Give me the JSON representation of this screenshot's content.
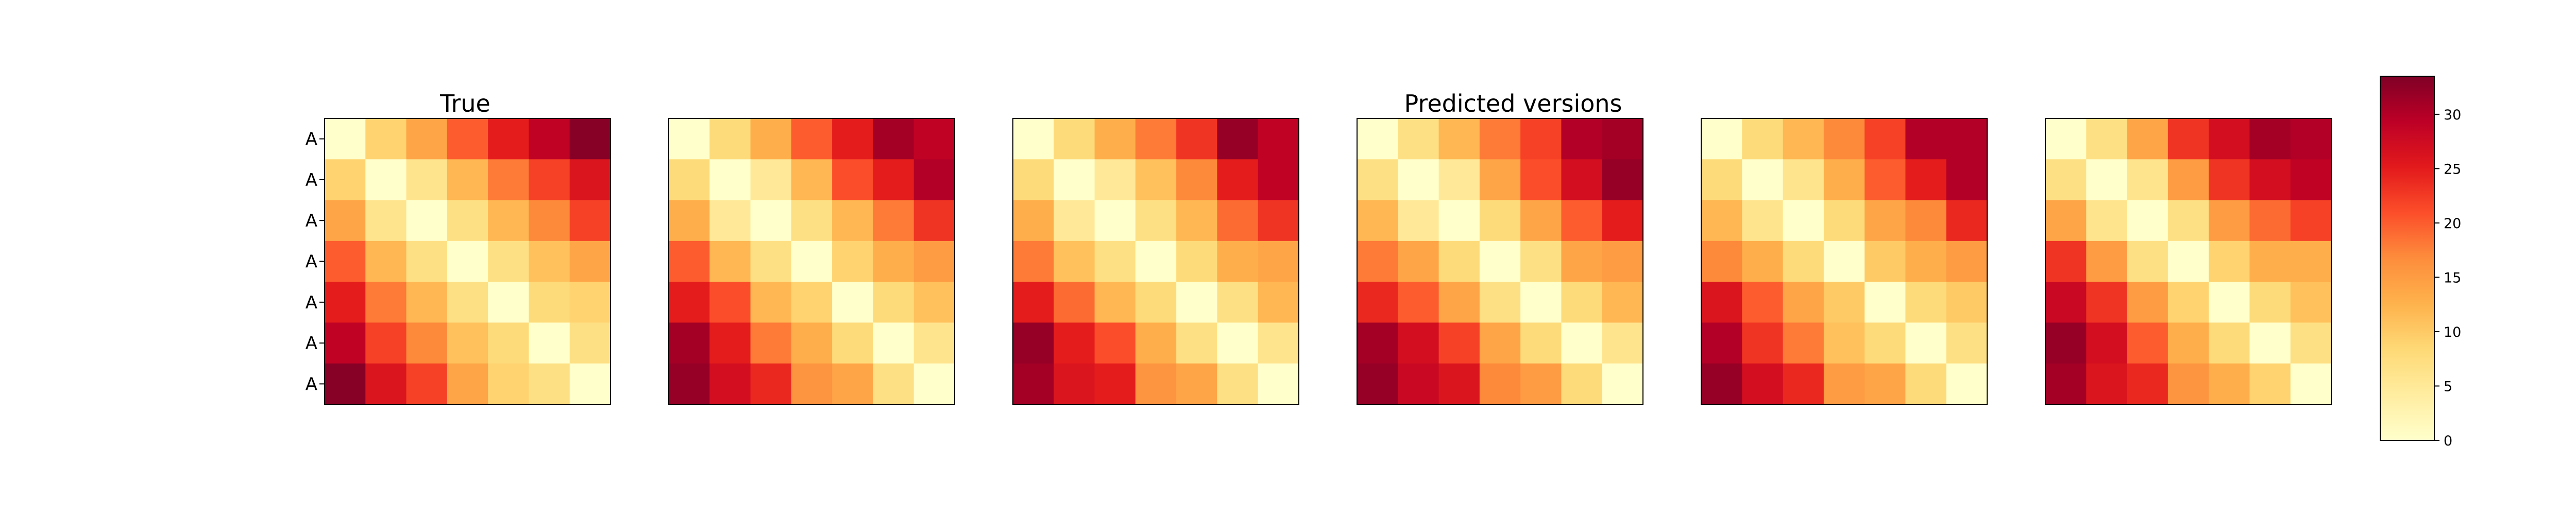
{
  "chart_data": {
    "type": "heatmap",
    "colormap": "YlOrRd",
    "vmin": 0,
    "vmax": 33.5,
    "titles": [
      "True",
      "Predicted versions"
    ],
    "row_labels": [
      "A",
      "A",
      "A",
      "A",
      "A",
      "A",
      "A"
    ],
    "colorbar": {
      "ticks": [
        0,
        5,
        10,
        15,
        20,
        25,
        30
      ]
    },
    "panels": [
      {
        "matrix": [
          [
            0,
            9,
            14,
            20,
            25,
            29,
            33
          ],
          [
            9,
            0,
            6,
            12,
            18,
            22,
            26
          ],
          [
            14,
            6,
            0,
            7,
            12,
            17,
            22
          ],
          [
            20,
            12,
            7,
            0,
            7,
            11,
            14
          ],
          [
            25,
            18,
            12,
            7,
            0,
            8,
            9
          ],
          [
            29,
            22,
            17,
            11,
            8,
            0,
            7
          ],
          [
            33,
            26,
            22,
            14,
            9,
            7,
            0
          ]
        ]
      },
      {
        "matrix": [
          [
            0,
            8,
            13,
            20,
            25,
            31,
            29
          ],
          [
            8,
            0,
            5,
            12,
            21,
            25,
            30
          ],
          [
            13,
            5,
            0,
            7,
            12,
            18,
            23
          ],
          [
            20,
            12,
            7,
            0,
            9,
            13,
            15
          ],
          [
            25,
            21,
            12,
            9,
            0,
            8,
            11
          ],
          [
            31,
            25,
            18,
            13,
            8,
            0,
            6
          ],
          [
            32,
            27,
            24,
            16,
            14,
            7,
            0
          ]
        ]
      },
      {
        "matrix": [
          [
            0,
            8,
            13,
            18,
            23,
            32,
            29
          ],
          [
            8,
            0,
            5,
            11,
            17,
            25,
            29
          ],
          [
            13,
            5,
            0,
            7,
            12,
            19,
            23
          ],
          [
            18,
            11,
            7,
            0,
            8,
            13,
            14
          ],
          [
            25,
            19,
            12,
            8,
            0,
            7,
            12
          ],
          [
            32,
            25,
            21,
            13,
            7,
            0,
            6
          ],
          [
            31,
            26,
            25,
            16,
            14,
            7,
            0
          ]
        ]
      },
      {
        "matrix": [
          [
            0,
            7,
            12,
            18,
            22,
            30,
            31
          ],
          [
            7,
            0,
            5,
            14,
            21,
            27,
            32
          ],
          [
            12,
            5,
            0,
            8,
            14,
            20,
            25
          ],
          [
            18,
            14,
            8,
            0,
            7,
            14,
            15
          ],
          [
            24,
            20,
            14,
            7,
            0,
            8,
            12
          ],
          [
            31,
            27,
            22,
            14,
            8,
            0,
            6
          ],
          [
            32,
            28,
            26,
            17,
            15,
            8,
            0
          ]
        ]
      },
      {
        "matrix": [
          [
            0,
            8,
            12,
            17,
            22,
            30,
            30
          ],
          [
            8,
            0,
            6,
            13,
            20,
            25,
            30
          ],
          [
            12,
            6,
            0,
            8,
            14,
            17,
            24
          ],
          [
            17,
            13,
            8,
            0,
            10,
            13,
            15
          ],
          [
            26,
            20,
            14,
            10,
            0,
            8,
            10
          ],
          [
            30,
            23,
            18,
            11,
            8,
            0,
            7
          ],
          [
            32,
            27,
            24,
            15,
            14,
            8,
            0
          ]
        ]
      },
      {
        "matrix": [
          [
            0,
            7,
            14,
            23,
            27,
            31,
            30
          ],
          [
            7,
            0,
            6,
            15,
            23,
            27,
            29
          ],
          [
            14,
            6,
            0,
            7,
            15,
            19,
            22
          ],
          [
            23,
            15,
            7,
            0,
            9,
            13,
            13
          ],
          [
            28,
            23,
            15,
            9,
            0,
            8,
            11
          ],
          [
            32,
            27,
            20,
            13,
            8,
            0,
            7
          ],
          [
            31,
            26,
            24,
            16,
            13,
            9,
            0
          ]
        ]
      }
    ]
  }
}
